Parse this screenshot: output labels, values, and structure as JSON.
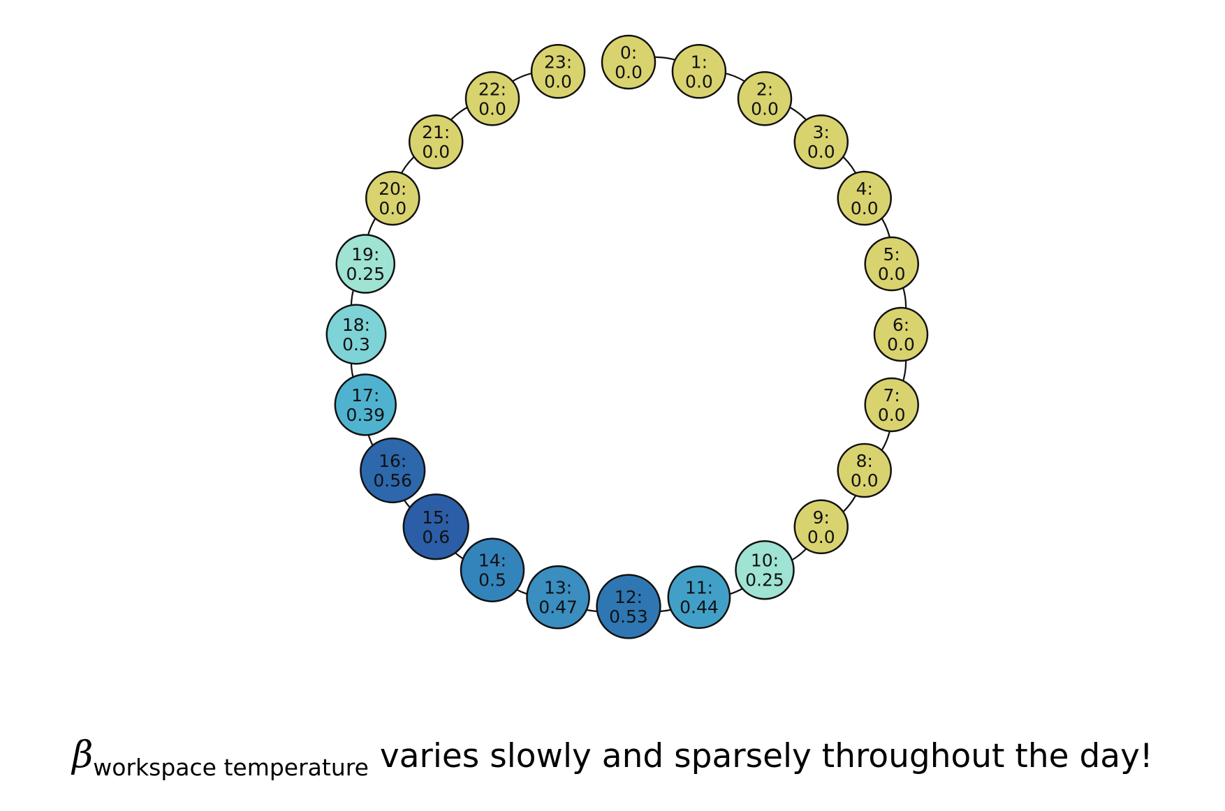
{
  "nodes": [
    {
      "id": 0,
      "id_label": "0:",
      "value": 0.0,
      "value_label": "0.0",
      "color": "#d9d36f"
    },
    {
      "id": 1,
      "id_label": "1:",
      "value": 0.0,
      "value_label": "0.0",
      "color": "#d9d36f"
    },
    {
      "id": 2,
      "id_label": "2:",
      "value": 0.0,
      "value_label": "0.0",
      "color": "#d9d36f"
    },
    {
      "id": 3,
      "id_label": "3:",
      "value": 0.0,
      "value_label": "0.0",
      "color": "#d9d36f"
    },
    {
      "id": 4,
      "id_label": "4:",
      "value": 0.0,
      "value_label": "0.0",
      "color": "#d9d36f"
    },
    {
      "id": 5,
      "id_label": "5:",
      "value": 0.0,
      "value_label": "0.0",
      "color": "#d9d36f"
    },
    {
      "id": 6,
      "id_label": "6:",
      "value": 0.0,
      "value_label": "0.0",
      "color": "#d9d36f"
    },
    {
      "id": 7,
      "id_label": "7:",
      "value": 0.0,
      "value_label": "0.0",
      "color": "#d9d36f"
    },
    {
      "id": 8,
      "id_label": "8:",
      "value": 0.0,
      "value_label": "0.0",
      "color": "#d9d36f"
    },
    {
      "id": 9,
      "id_label": "9:",
      "value": 0.0,
      "value_label": "0.0",
      "color": "#d9d36f"
    },
    {
      "id": 10,
      "id_label": "10:",
      "value": 0.25,
      "value_label": "0.25",
      "color": "#9ee3d3"
    },
    {
      "id": 11,
      "id_label": "11:",
      "value": 0.44,
      "value_label": "0.44",
      "color": "#42a0c8"
    },
    {
      "id": 12,
      "id_label": "12:",
      "value": 0.53,
      "value_label": "0.53",
      "color": "#2e77b3"
    },
    {
      "id": 13,
      "id_label": "13:",
      "value": 0.47,
      "value_label": "0.47",
      "color": "#3a8ec0"
    },
    {
      "id": 14,
      "id_label": "14:",
      "value": 0.5,
      "value_label": "0.5",
      "color": "#3484bc"
    },
    {
      "id": 15,
      "id_label": "15:",
      "value": 0.6,
      "value_label": "0.6",
      "color": "#2b5ea7"
    },
    {
      "id": 16,
      "id_label": "16:",
      "value": 0.56,
      "value_label": "0.56",
      "color": "#2d68ad"
    },
    {
      "id": 17,
      "id_label": "17:",
      "value": 0.39,
      "value_label": "0.39",
      "color": "#4fb3cf"
    },
    {
      "id": 18,
      "id_label": "18:",
      "value": 0.3,
      "value_label": "0.3",
      "color": "#7dd3d6"
    },
    {
      "id": 19,
      "id_label": "19:",
      "value": 0.25,
      "value_label": "0.25",
      "color": "#9ee3d3"
    },
    {
      "id": 20,
      "id_label": "20:",
      "value": 0.0,
      "value_label": "0.0",
      "color": "#d9d36f"
    },
    {
      "id": 21,
      "id_label": "21:",
      "value": 0.0,
      "value_label": "0.0",
      "color": "#d9d36f"
    },
    {
      "id": 22,
      "id_label": "22:",
      "value": 0.0,
      "value_label": "0.0",
      "color": "#d9d36f"
    },
    {
      "id": 23,
      "id_label": "23:",
      "value": 0.0,
      "value_label": "0.0",
      "color": "#d9d36f"
    }
  ],
  "edges": [
    [
      0,
      1
    ],
    [
      1,
      2
    ],
    [
      2,
      3
    ],
    [
      3,
      4
    ],
    [
      4,
      5
    ],
    [
      5,
      6
    ],
    [
      6,
      7
    ],
    [
      7,
      8
    ],
    [
      8,
      9
    ],
    [
      9,
      10
    ],
    [
      10,
      11
    ],
    [
      11,
      12
    ],
    [
      12,
      13
    ],
    [
      13,
      14
    ],
    [
      14,
      15
    ],
    [
      15,
      16
    ],
    [
      16,
      17
    ],
    [
      17,
      18
    ],
    [
      18,
      19
    ],
    [
      19,
      20
    ],
    [
      20,
      21
    ],
    [
      21,
      22
    ],
    [
      22,
      23
    ]
  ],
  "caption": {
    "symbol": "β",
    "subscript": "workspace temperature",
    "text": "varies slowly and sparsely throughout the day!"
  },
  "colors": {
    "zero": "#d9d36f",
    "low": "#9ee3d3",
    "high": "#2b5ea7",
    "outline": "#111111",
    "edge": "#111111"
  }
}
